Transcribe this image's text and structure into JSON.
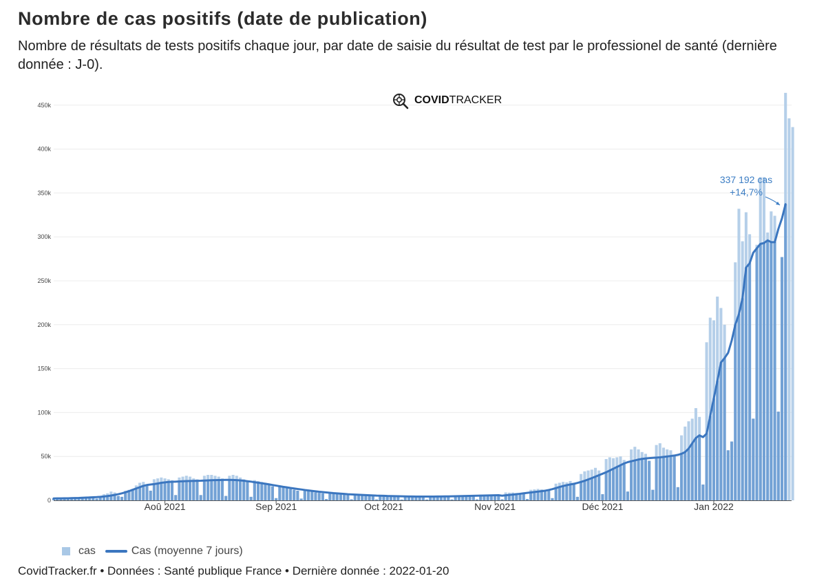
{
  "header": {
    "title": "Nombre de cas positifs (date de publication)",
    "subtitle": "Nombre de résultats de tests positifs chaque jour, par date de saisie du résultat de test par le professionel de santé (dernière donnée : J-0)."
  },
  "logo": {
    "bold": "COVID",
    "light": "TRACKER",
    "icon": "virus-magnifier-icon"
  },
  "annotation": {
    "line1": "337 192 cas",
    "line2": "+14,7%"
  },
  "legend": [
    {
      "label": "cas"
    },
    {
      "label": "Cas (moyenne 7 jours)"
    }
  ],
  "footer": "CovidTracker.fr • Données : Santé publique France • Dernière donnée : 2022-01-20",
  "colors": {
    "bar_light": "#b5cfe9",
    "bar_dark": "#6a9bd3",
    "line": "#3b76bf",
    "annotation": "#3b7dc4"
  },
  "chart_data": {
    "type": "bar",
    "x_start": "2021-07-01",
    "x_end": "2022-01-20",
    "ylim": [
      0,
      460000
    ],
    "y_ticks": [
      0,
      50000,
      100000,
      150000,
      200000,
      250000,
      300000,
      350000,
      400000,
      450000
    ],
    "y_tick_labels": [
      "0",
      "50k",
      "100k",
      "150k",
      "200k",
      "250k",
      "300k",
      "350k",
      "400k",
      "450k"
    ],
    "x_ticks": [
      "2021-08-01",
      "2021-09-01",
      "2021-10-01",
      "2021-11-01",
      "2021-12-01",
      "2022-01-01"
    ],
    "x_tick_labels": [
      "Aoû 2021",
      "Sep 2021",
      "Oct 2021",
      "Nov 2021",
      "Déc 2021",
      "Jan 2022"
    ],
    "grid": true,
    "legend_position": "bottom-left",
    "series": [
      {
        "name": "cas",
        "type": "bar",
        "values": [
          2500,
          2800,
          3000,
          2500,
          1500,
          3500,
          3000,
          3500,
          4000,
          4200,
          4000,
          3000,
          2000,
          5000,
          7000,
          8000,
          10000,
          9000,
          5000,
          4000,
          11000,
          12000,
          13000,
          17000,
          20000,
          21000,
          18000,
          11000,
          24000,
          25000,
          26000,
          25000,
          24000,
          23000,
          6000,
          26000,
          27000,
          28000,
          27000,
          25000,
          24000,
          6000,
          28000,
          29000,
          29000,
          28000,
          27000,
          25000,
          5000,
          28000,
          29000,
          28000,
          26000,
          24000,
          22000,
          4000,
          23000,
          22000,
          21000,
          19000,
          18000,
          16000,
          2500,
          17000,
          16000,
          15000,
          13000,
          12000,
          11000,
          2000,
          11000,
          10500,
          10000,
          9000,
          8500,
          8000,
          1500,
          8000,
          7500,
          7200,
          6800,
          6500,
          6000,
          1200,
          6500,
          6200,
          6000,
          5800,
          5500,
          5200,
          1000,
          5500,
          5300,
          5000,
          4800,
          4600,
          4400,
          900,
          4800,
          4600,
          4500,
          4400,
          4300,
          4100,
          900,
          4800,
          4600,
          4500,
          4400,
          4300,
          4200,
          1000,
          5500,
          5300,
          5200,
          5000,
          4900,
          4700,
          1100,
          6500,
          6300,
          6200,
          6000,
          5800,
          5600,
          1200,
          9000,
          8800,
          9000,
          8500,
          8200,
          8000,
          1500,
          12000,
          12500,
          13000,
          12500,
          12000,
          11000,
          2500,
          19000,
          20000,
          21000,
          20500,
          22000,
          20000,
          4000,
          30000,
          33000,
          34000,
          35000,
          37000,
          34000,
          7000,
          47000,
          49000,
          48000,
          49000,
          50000,
          46000,
          10000,
          58000,
          61000,
          58000,
          55000,
          53000,
          45000,
          12000,
          63000,
          65000,
          60000,
          58000,
          57000,
          52000,
          15000,
          74000,
          84000,
          90000,
          93000,
          105000,
          95000,
          18000,
          180000,
          208000,
          205000,
          232000,
          219000,
          200000,
          57000,
          67000,
          271000,
          332000,
          295000,
          328000,
          303000,
          93000,
          291000,
          368000,
          368000,
          305000,
          329000,
          324000,
          101000,
          277000,
          464000,
          435000,
          425000
        ]
      },
      {
        "name": "Cas (moyenne 7 jours)",
        "type": "line",
        "values": [
          2200,
          2250,
          2300,
          2350,
          2400,
          2500,
          2600,
          2700,
          2900,
          3100,
          3300,
          3500,
          3700,
          4000,
          4400,
          4900,
          5500,
          6200,
          7000,
          8000,
          9200,
          10500,
          12000,
          13500,
          15000,
          16500,
          17500,
          18000,
          18500,
          19200,
          20000,
          20500,
          21000,
          21200,
          21300,
          21500,
          21700,
          21900,
          22000,
          22100,
          22200,
          22300,
          22500,
          22700,
          22900,
          23000,
          23100,
          23200,
          23300,
          23300,
          23200,
          23000,
          22700,
          22300,
          21800,
          21300,
          20700,
          20100,
          19500,
          18900,
          18200,
          17500,
          16800,
          16100,
          15400,
          14800,
          14100,
          13500,
          12900,
          12400,
          11800,
          11300,
          10800,
          10300,
          9800,
          9400,
          9000,
          8600,
          8200,
          7900,
          7600,
          7300,
          7000,
          6800,
          6600,
          6400,
          6200,
          6000,
          5800,
          5600,
          5400,
          5300,
          5200,
          5000,
          4900,
          4800,
          4700,
          4600,
          4500,
          4400,
          4400,
          4300,
          4300,
          4300,
          4300,
          4300,
          4300,
          4400,
          4400,
          4500,
          4500,
          4600,
          4700,
          4800,
          4900,
          5000,
          5100,
          5200,
          5300,
          5400,
          5500,
          5600,
          5700,
          5800,
          5900,
          5300,
          5800,
          6200,
          6600,
          7000,
          7500,
          8000,
          8500,
          9000,
          9500,
          10000,
          10500,
          11000,
          11800,
          12800,
          14000,
          15200,
          16300,
          17300,
          18100,
          18800,
          19800,
          21000,
          22300,
          23800,
          25400,
          27000,
          28700,
          30300,
          32000,
          34000,
          36000,
          38000,
          40000,
          42000,
          43500,
          44500,
          45500,
          46500,
          47200,
          47700,
          48100,
          48400,
          48700,
          49000,
          49500,
          50000,
          50500,
          51000,
          51800,
          53000,
          55000,
          59000,
          65000,
          71000,
          74000,
          72000,
          76000,
          96000,
          116000,
          136000,
          157000,
          162000,
          168000,
          182000,
          200000,
          212000,
          230000,
          265000,
          270000,
          282000,
          287000,
          292000,
          293000,
          296000,
          294000,
          294000,
          309000,
          321000,
          337192
        ]
      }
    ]
  }
}
